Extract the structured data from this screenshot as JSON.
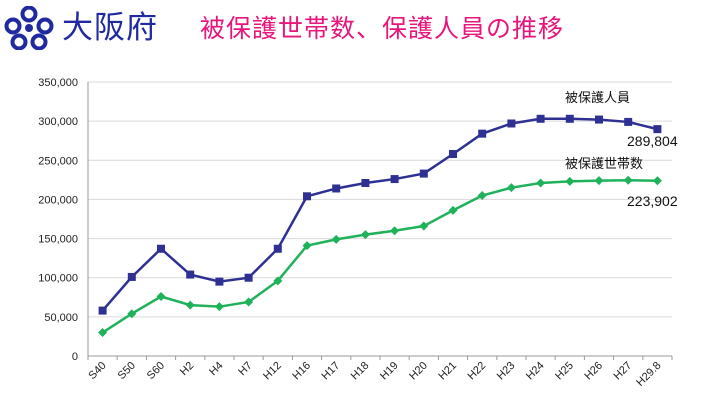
{
  "header": {
    "org_name": "大阪府",
    "title": "被保護世帯数、保護人員の推移",
    "logo_icon": "osaka-prefecture-emblem-icon"
  },
  "colors": {
    "org_text": "#1f2aa0",
    "title_text": "#e8157a",
    "series_people": "#2e3192",
    "series_households": "#1fb25a"
  },
  "chart_data": {
    "type": "line",
    "title": "被保護世帯数、保護人員の推移",
    "xlabel": "",
    "ylabel": "",
    "ylim": [
      0,
      350000
    ],
    "yticks": [
      "0",
      "50,000",
      "100,000",
      "150,000",
      "200,000",
      "250,000",
      "300,000",
      "350,000"
    ],
    "grid": true,
    "x": [
      "S40",
      "S50",
      "S60",
      "H2",
      "H4",
      "H7",
      "H12",
      "H16",
      "H17",
      "H18",
      "H19",
      "H20",
      "H21",
      "H22",
      "H23",
      "H24",
      "H25",
      "H26",
      "H27",
      "H29.8"
    ],
    "series": [
      {
        "name": "被保護人員",
        "marker": "square",
        "values": [
          58000,
          101000,
          137000,
          104000,
          95000,
          100000,
          137000,
          204000,
          214000,
          221000,
          226000,
          233000,
          258000,
          284000,
          297000,
          303000,
          303000,
          302000,
          299000,
          289804
        ],
        "end_label": "289,804"
      },
      {
        "name": "被保護世帯数",
        "marker": "diamond",
        "values": [
          30000,
          54000,
          76000,
          65000,
          63000,
          69000,
          96000,
          141000,
          149000,
          155000,
          160000,
          166000,
          186000,
          205000,
          215000,
          221000,
          223000,
          224000,
          224500,
          223902
        ],
        "end_label": "223,902"
      }
    ]
  }
}
